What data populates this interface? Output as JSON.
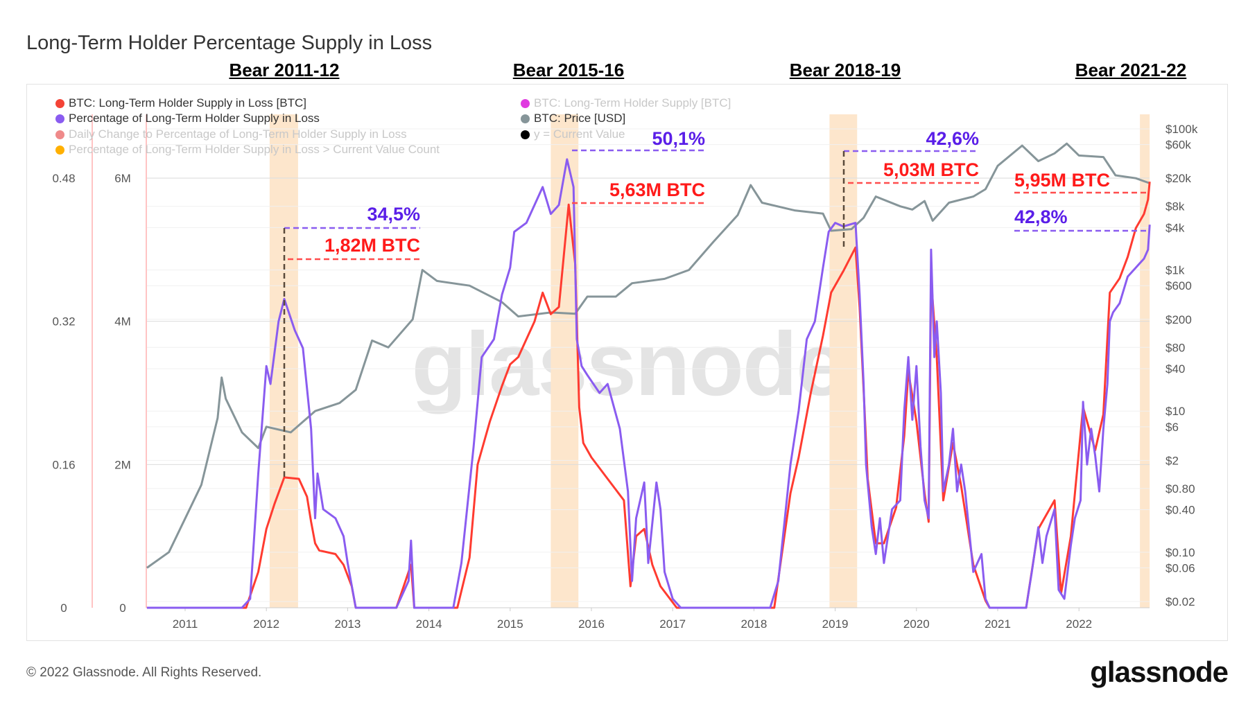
{
  "title": "Long-Term Holder Percentage Supply in Loss",
  "bear_labels": [
    "Bear 2011-12",
    "Bear 2015-16",
    "Bear 2018-19",
    "Bear 2021-22"
  ],
  "legend": [
    {
      "label": "BTC: Long-Term Holder Supply in Loss [BTC]",
      "color": "#f44336",
      "active": true
    },
    {
      "label": "Percentage of Long-Term Holder Supply in Loss",
      "color": "#8a5cf0",
      "active": true
    },
    {
      "label": "Daily Change to Percentage of Long-Term Holder Supply in Loss",
      "color": "#ef8a8a",
      "active": false
    },
    {
      "label": "Percentage of Long-Term Holder Supply in Loss > Current Value Count",
      "color": "#ffb000",
      "active": false
    },
    {
      "label": "BTC: Long-Term Holder Supply [BTC]",
      "color": "#e03ae0",
      "active": false
    },
    {
      "label": "BTC: Price [USD]",
      "color": "#869599",
      "active": true
    },
    {
      "label": "y = Current Value",
      "color": "#000000",
      "active": false
    }
  ],
  "annotations": {
    "pct_2012": "34,5%",
    "btc_2012": "1,82M BTC",
    "pct_2015": "50,1%",
    "btc_2015": "5,63M BTC",
    "pct_2019": "42,6%",
    "btc_2019": "5,03M BTC",
    "btc_2022": "5,95M BTC",
    "pct_2022": "42,8%"
  },
  "colors": {
    "red": "#ff3b30",
    "purple": "#8a5cf0",
    "price": "#869599",
    "annotation_purple": "#5a1ee8",
    "annotation_red": "#ff1a1a",
    "band": "#fde6cc"
  },
  "watermark": "glassnode",
  "footer": {
    "copyright": "© 2022 Glassnode. All Rights Reserved.",
    "logo": "glassnode"
  },
  "chart_data": {
    "type": "line",
    "title": "Long-Term Holder Percentage Supply in Loss",
    "x_ticks": [
      "2011",
      "2012",
      "2013",
      "2014",
      "2015",
      "2016",
      "2017",
      "2018",
      "2019",
      "2020",
      "2021",
      "2022"
    ],
    "xlim": [
      2010.53,
      2022.87
    ],
    "y_left_pct": {
      "ticks": [
        "0",
        "0.16",
        "0.32",
        "0.48"
      ],
      "range": [
        0,
        0.48
      ]
    },
    "y_left_btc": {
      "ticks": [
        "0",
        "2M",
        "4M",
        "6M"
      ],
      "range": [
        0,
        6000000
      ]
    },
    "y_right_price": {
      "scale": "log",
      "ticks": [
        "$100k",
        "$60k",
        "$20k",
        "$8k",
        "$4k",
        "$1k",
        "$600",
        "$200",
        "$80",
        "$40",
        "$10",
        "$6",
        "$2",
        "$0.80",
        "$0.40",
        "$0.10",
        "$0.06",
        "$0.02"
      ],
      "tick_values": [
        100000,
        60000,
        20000,
        8000,
        4000,
        1000,
        600,
        200,
        80,
        40,
        10,
        6,
        2,
        0.8,
        0.4,
        0.1,
        0.06,
        0.02
      ]
    },
    "highlight_periods": [
      [
        2012.04,
        2012.39
      ],
      [
        2015.5,
        2015.84
      ],
      [
        2018.93,
        2019.27
      ],
      [
        2022.75,
        2022.87
      ]
    ],
    "grid": true,
    "legend_position": "top-left",
    "series": [
      {
        "name": "Percentage of Long-Term Holder Supply in Loss",
        "axis": "pct",
        "color": "#8a5cf0",
        "points": [
          [
            2010.53,
            0
          ],
          [
            2011.7,
            0
          ],
          [
            2011.8,
            0.01
          ],
          [
            2011.9,
            0.15
          ],
          [
            2012.0,
            0.27
          ],
          [
            2012.05,
            0.25
          ],
          [
            2012.15,
            0.32
          ],
          [
            2012.22,
            0.345
          ],
          [
            2012.35,
            0.31
          ],
          [
            2012.45,
            0.29
          ],
          [
            2012.55,
            0.2
          ],
          [
            2012.6,
            0.1
          ],
          [
            2012.63,
            0.15
          ],
          [
            2012.7,
            0.11
          ],
          [
            2012.85,
            0.1
          ],
          [
            2012.95,
            0.08
          ],
          [
            2013.0,
            0.05
          ],
          [
            2013.1,
            0
          ],
          [
            2013.6,
            0
          ],
          [
            2013.75,
            0.03
          ],
          [
            2013.78,
            0.075
          ],
          [
            2013.82,
            0
          ],
          [
            2014.3,
            0
          ],
          [
            2014.4,
            0.05
          ],
          [
            2014.55,
            0.18
          ],
          [
            2014.65,
            0.28
          ],
          [
            2014.8,
            0.3
          ],
          [
            2014.9,
            0.35
          ],
          [
            2015.0,
            0.38
          ],
          [
            2015.05,
            0.42
          ],
          [
            2015.2,
            0.43
          ],
          [
            2015.4,
            0.47
          ],
          [
            2015.5,
            0.44
          ],
          [
            2015.6,
            0.45
          ],
          [
            2015.7,
            0.501
          ],
          [
            2015.78,
            0.47
          ],
          [
            2015.82,
            0.3
          ],
          [
            2015.88,
            0.27
          ],
          [
            2015.95,
            0.26
          ],
          [
            2016.1,
            0.24
          ],
          [
            2016.2,
            0.25
          ],
          [
            2016.35,
            0.2
          ],
          [
            2016.45,
            0.13
          ],
          [
            2016.5,
            0.03
          ],
          [
            2016.55,
            0.1
          ],
          [
            2016.65,
            0.14
          ],
          [
            2016.7,
            0.05
          ],
          [
            2016.8,
            0.14
          ],
          [
            2016.85,
            0.11
          ],
          [
            2016.9,
            0.04
          ],
          [
            2017.0,
            0.01
          ],
          [
            2017.1,
            0
          ],
          [
            2018.2,
            0
          ],
          [
            2018.3,
            0.03
          ],
          [
            2018.45,
            0.16
          ],
          [
            2018.55,
            0.22
          ],
          [
            2018.65,
            0.3
          ],
          [
            2018.75,
            0.32
          ],
          [
            2018.85,
            0.38
          ],
          [
            2018.92,
            0.42
          ],
          [
            2019.0,
            0.43
          ],
          [
            2019.1,
            0.426
          ],
          [
            2019.25,
            0.43
          ],
          [
            2019.3,
            0.35
          ],
          [
            2019.35,
            0.25
          ],
          [
            2019.38,
            0.16
          ],
          [
            2019.45,
            0.09
          ],
          [
            2019.5,
            0.06
          ],
          [
            2019.55,
            0.1
          ],
          [
            2019.6,
            0.05
          ],
          [
            2019.7,
            0.11
          ],
          [
            2019.8,
            0.12
          ],
          [
            2019.85,
            0.22
          ],
          [
            2019.9,
            0.28
          ],
          [
            2019.95,
            0.21
          ],
          [
            2020.0,
            0.27
          ],
          [
            2020.05,
            0.18
          ],
          [
            2020.1,
            0.12
          ],
          [
            2020.15,
            0.1
          ],
          [
            2020.18,
            0.4
          ],
          [
            2020.22,
            0.28
          ],
          [
            2020.25,
            0.32
          ],
          [
            2020.3,
            0.24
          ],
          [
            2020.33,
            0.13
          ],
          [
            2020.4,
            0.16
          ],
          [
            2020.45,
            0.2
          ],
          [
            2020.5,
            0.13
          ],
          [
            2020.55,
            0.16
          ],
          [
            2020.6,
            0.13
          ],
          [
            2020.7,
            0.04
          ],
          [
            2020.8,
            0.06
          ],
          [
            2020.85,
            0.01
          ],
          [
            2020.9,
            0
          ],
          [
            2021.35,
            0
          ],
          [
            2021.42,
            0.04
          ],
          [
            2021.5,
            0.09
          ],
          [
            2021.55,
            0.05
          ],
          [
            2021.6,
            0.08
          ],
          [
            2021.7,
            0.11
          ],
          [
            2021.75,
            0.02
          ],
          [
            2021.82,
            0.01
          ],
          [
            2021.9,
            0.07
          ],
          [
            2021.95,
            0.1
          ],
          [
            2022.02,
            0.12
          ],
          [
            2022.05,
            0.23
          ],
          [
            2022.1,
            0.16
          ],
          [
            2022.15,
            0.2
          ],
          [
            2022.2,
            0.17
          ],
          [
            2022.25,
            0.13
          ],
          [
            2022.3,
            0.2
          ],
          [
            2022.35,
            0.25
          ],
          [
            2022.38,
            0.32
          ],
          [
            2022.42,
            0.33
          ],
          [
            2022.5,
            0.34
          ],
          [
            2022.6,
            0.37
          ],
          [
            2022.7,
            0.38
          ],
          [
            2022.8,
            0.39
          ],
          [
            2022.85,
            0.4
          ],
          [
            2022.87,
            0.428
          ]
        ]
      },
      {
        "name": "BTC: Long-Term Holder Supply in Loss [BTC]",
        "axis": "btc",
        "color": "#ff3b30",
        "points": [
          [
            2010.53,
            0
          ],
          [
            2011.75,
            0
          ],
          [
            2011.9,
            500000
          ],
          [
            2012.0,
            1100000
          ],
          [
            2012.1,
            1450000
          ],
          [
            2012.22,
            1820000
          ],
          [
            2012.4,
            1800000
          ],
          [
            2012.5,
            1550000
          ],
          [
            2012.55,
            1200000
          ],
          [
            2012.6,
            900000
          ],
          [
            2012.65,
            800000
          ],
          [
            2012.85,
            750000
          ],
          [
            2012.95,
            600000
          ],
          [
            2013.05,
            300000
          ],
          [
            2013.1,
            0
          ],
          [
            2013.6,
            0
          ],
          [
            2013.78,
            600000
          ],
          [
            2013.82,
            0
          ],
          [
            2014.35,
            0
          ],
          [
            2014.5,
            700000
          ],
          [
            2014.6,
            2000000
          ],
          [
            2014.75,
            2600000
          ],
          [
            2014.9,
            3100000
          ],
          [
            2015.0,
            3400000
          ],
          [
            2015.1,
            3500000
          ],
          [
            2015.3,
            4000000
          ],
          [
            2015.4,
            4400000
          ],
          [
            2015.5,
            4100000
          ],
          [
            2015.6,
            4200000
          ],
          [
            2015.72,
            5630000
          ],
          [
            2015.8,
            4800000
          ],
          [
            2015.85,
            2800000
          ],
          [
            2015.9,
            2300000
          ],
          [
            2016.0,
            2100000
          ],
          [
            2016.2,
            1800000
          ],
          [
            2016.4,
            1500000
          ],
          [
            2016.48,
            300000
          ],
          [
            2016.55,
            1000000
          ],
          [
            2016.65,
            1100000
          ],
          [
            2016.75,
            600000
          ],
          [
            2016.85,
            300000
          ],
          [
            2017.05,
            0
          ],
          [
            2018.25,
            0
          ],
          [
            2018.45,
            1600000
          ],
          [
            2018.55,
            2100000
          ],
          [
            2018.7,
            3000000
          ],
          [
            2018.85,
            3800000
          ],
          [
            2018.95,
            4400000
          ],
          [
            2019.1,
            4700000
          ],
          [
            2019.25,
            5030000
          ],
          [
            2019.3,
            4200000
          ],
          [
            2019.36,
            2800000
          ],
          [
            2019.4,
            1800000
          ],
          [
            2019.5,
            900000
          ],
          [
            2019.6,
            900000
          ],
          [
            2019.75,
            1400000
          ],
          [
            2019.85,
            2400000
          ],
          [
            2019.9,
            3300000
          ],
          [
            2020.0,
            2600000
          ],
          [
            2020.1,
            1600000
          ],
          [
            2020.15,
            1200000
          ],
          [
            2020.18,
            4600000
          ],
          [
            2020.25,
            3500000
          ],
          [
            2020.33,
            1500000
          ],
          [
            2020.45,
            2300000
          ],
          [
            2020.55,
            1700000
          ],
          [
            2020.7,
            600000
          ],
          [
            2020.85,
            100000
          ],
          [
            2020.9,
            0
          ],
          [
            2021.35,
            0
          ],
          [
            2021.5,
            1100000
          ],
          [
            2021.7,
            1500000
          ],
          [
            2021.78,
            200000
          ],
          [
            2021.9,
            1000000
          ],
          [
            2022.05,
            2800000
          ],
          [
            2022.2,
            2200000
          ],
          [
            2022.3,
            2700000
          ],
          [
            2022.38,
            4400000
          ],
          [
            2022.5,
            4600000
          ],
          [
            2022.6,
            4900000
          ],
          [
            2022.7,
            5300000
          ],
          [
            2022.8,
            5500000
          ],
          [
            2022.85,
            5700000
          ],
          [
            2022.87,
            5950000
          ]
        ]
      },
      {
        "name": "BTC: Price [USD]",
        "axis": "price",
        "color": "#869599",
        "points": [
          [
            2010.53,
            0.06
          ],
          [
            2010.8,
            0.1
          ],
          [
            2011.0,
            0.3
          ],
          [
            2011.2,
            0.9
          ],
          [
            2011.4,
            8
          ],
          [
            2011.45,
            30
          ],
          [
            2011.5,
            15
          ],
          [
            2011.7,
            5
          ],
          [
            2011.9,
            3
          ],
          [
            2012.0,
            6
          ],
          [
            2012.3,
            5
          ],
          [
            2012.6,
            10
          ],
          [
            2012.9,
            13
          ],
          [
            2013.1,
            20
          ],
          [
            2013.3,
            100
          ],
          [
            2013.5,
            80
          ],
          [
            2013.8,
            200
          ],
          [
            2013.92,
            1000
          ],
          [
            2014.1,
            700
          ],
          [
            2014.5,
            600
          ],
          [
            2014.9,
            350
          ],
          [
            2015.1,
            220
          ],
          [
            2015.5,
            250
          ],
          [
            2015.8,
            240
          ],
          [
            2015.95,
            420
          ],
          [
            2016.3,
            420
          ],
          [
            2016.5,
            650
          ],
          [
            2016.9,
            750
          ],
          [
            2017.2,
            1000
          ],
          [
            2017.5,
            2500
          ],
          [
            2017.8,
            6000
          ],
          [
            2017.96,
            16000
          ],
          [
            2018.1,
            9000
          ],
          [
            2018.5,
            7000
          ],
          [
            2018.85,
            6300
          ],
          [
            2018.95,
            3600
          ],
          [
            2019.2,
            3800
          ],
          [
            2019.35,
            5500
          ],
          [
            2019.5,
            11000
          ],
          [
            2019.8,
            8000
          ],
          [
            2019.95,
            7200
          ],
          [
            2020.1,
            9500
          ],
          [
            2020.2,
            5000
          ],
          [
            2020.4,
            9000
          ],
          [
            2020.7,
            11000
          ],
          [
            2020.85,
            14000
          ],
          [
            2021.0,
            30000
          ],
          [
            2021.3,
            58000
          ],
          [
            2021.5,
            35000
          ],
          [
            2021.7,
            45000
          ],
          [
            2021.85,
            62000
          ],
          [
            2022.0,
            42000
          ],
          [
            2022.3,
            40000
          ],
          [
            2022.45,
            22000
          ],
          [
            2022.7,
            20000
          ],
          [
            2022.87,
            17000
          ]
        ]
      }
    ]
  }
}
